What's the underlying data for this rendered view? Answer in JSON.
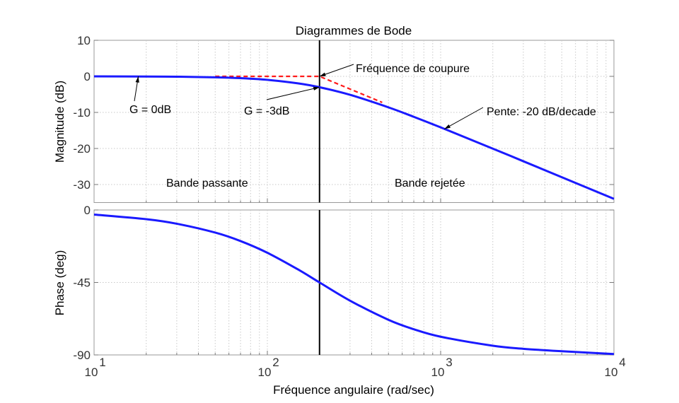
{
  "chart_data": {
    "type": "line",
    "title": "Diagrammes de Bode",
    "xlabel": "Fréquence angulaire  (rad/sec)",
    "xscale": "log",
    "xlim": [
      10,
      10000
    ],
    "xticks": [
      10,
      100,
      1000,
      10000
    ],
    "xtick_labels": [
      {
        "base": "10",
        "exp": "1"
      },
      {
        "base": "10",
        "exp": "2"
      },
      {
        "base": "10",
        "exp": "3"
      },
      {
        "base": "10",
        "exp": "4"
      }
    ],
    "grid": true,
    "cutoff_frequency": 200,
    "colors": {
      "response": "#1a1aff",
      "asymptote": "#ff1a1a",
      "cutoff_line": "#000000"
    },
    "omega": [
      10,
      20,
      30,
      50,
      70,
      100,
      150,
      200,
      300,
      500,
      700,
      1000,
      2000,
      3000,
      5000,
      10000
    ],
    "subplots": [
      {
        "ylabel": "Magnitude (dB)",
        "ylim": [
          -35,
          10
        ],
        "yticks": [
          10,
          0,
          -10,
          -20,
          -30
        ],
        "ytick_labels": [
          "10",
          "0",
          "-10",
          "-20",
          "-30"
        ],
        "series": [
          {
            "values": [
              -0.011,
              -0.043,
              -0.097,
              -0.263,
              -0.502,
              -0.969,
              -1.938,
              -3.01,
              -5.119,
              -8.6,
              -11.222,
              -14.15,
              -20.04,
              -23.54,
              -27.97,
              -33.98
            ]
          }
        ],
        "asymptote": {
          "x": [
            50,
            200,
            460
          ],
          "y": [
            0,
            0,
            -7.23
          ]
        },
        "annotations": [
          {
            "text": "G = 0dB",
            "target": [
              18,
              0
            ]
          },
          {
            "text": "G = -3dB",
            "target": [
              200,
              -3.01
            ]
          },
          {
            "text": "Fréquence de coupure",
            "target": [
              200,
              0
            ]
          },
          {
            "text": "Pente: -20 dB/decade",
            "target": [
              1050,
              -14.6
            ]
          },
          {
            "text": "Bande passante"
          },
          {
            "text": "Bande rejetée"
          }
        ]
      },
      {
        "ylabel": "Phase (deg)",
        "ylim": [
          -90,
          0
        ],
        "yticks": [
          0,
          -45,
          -90
        ],
        "ytick_labels": [
          "0",
          "-45",
          "-90"
        ],
        "series": [
          {
            "values": [
              -2.86,
              -5.71,
              -8.53,
              -14.04,
              -19.29,
              -26.57,
              -36.87,
              -45,
              -56.31,
              -68.2,
              -74.05,
              -78.69,
              -84.29,
              -86.19,
              -87.71,
              -89.43
            ]
          }
        ]
      }
    ]
  }
}
